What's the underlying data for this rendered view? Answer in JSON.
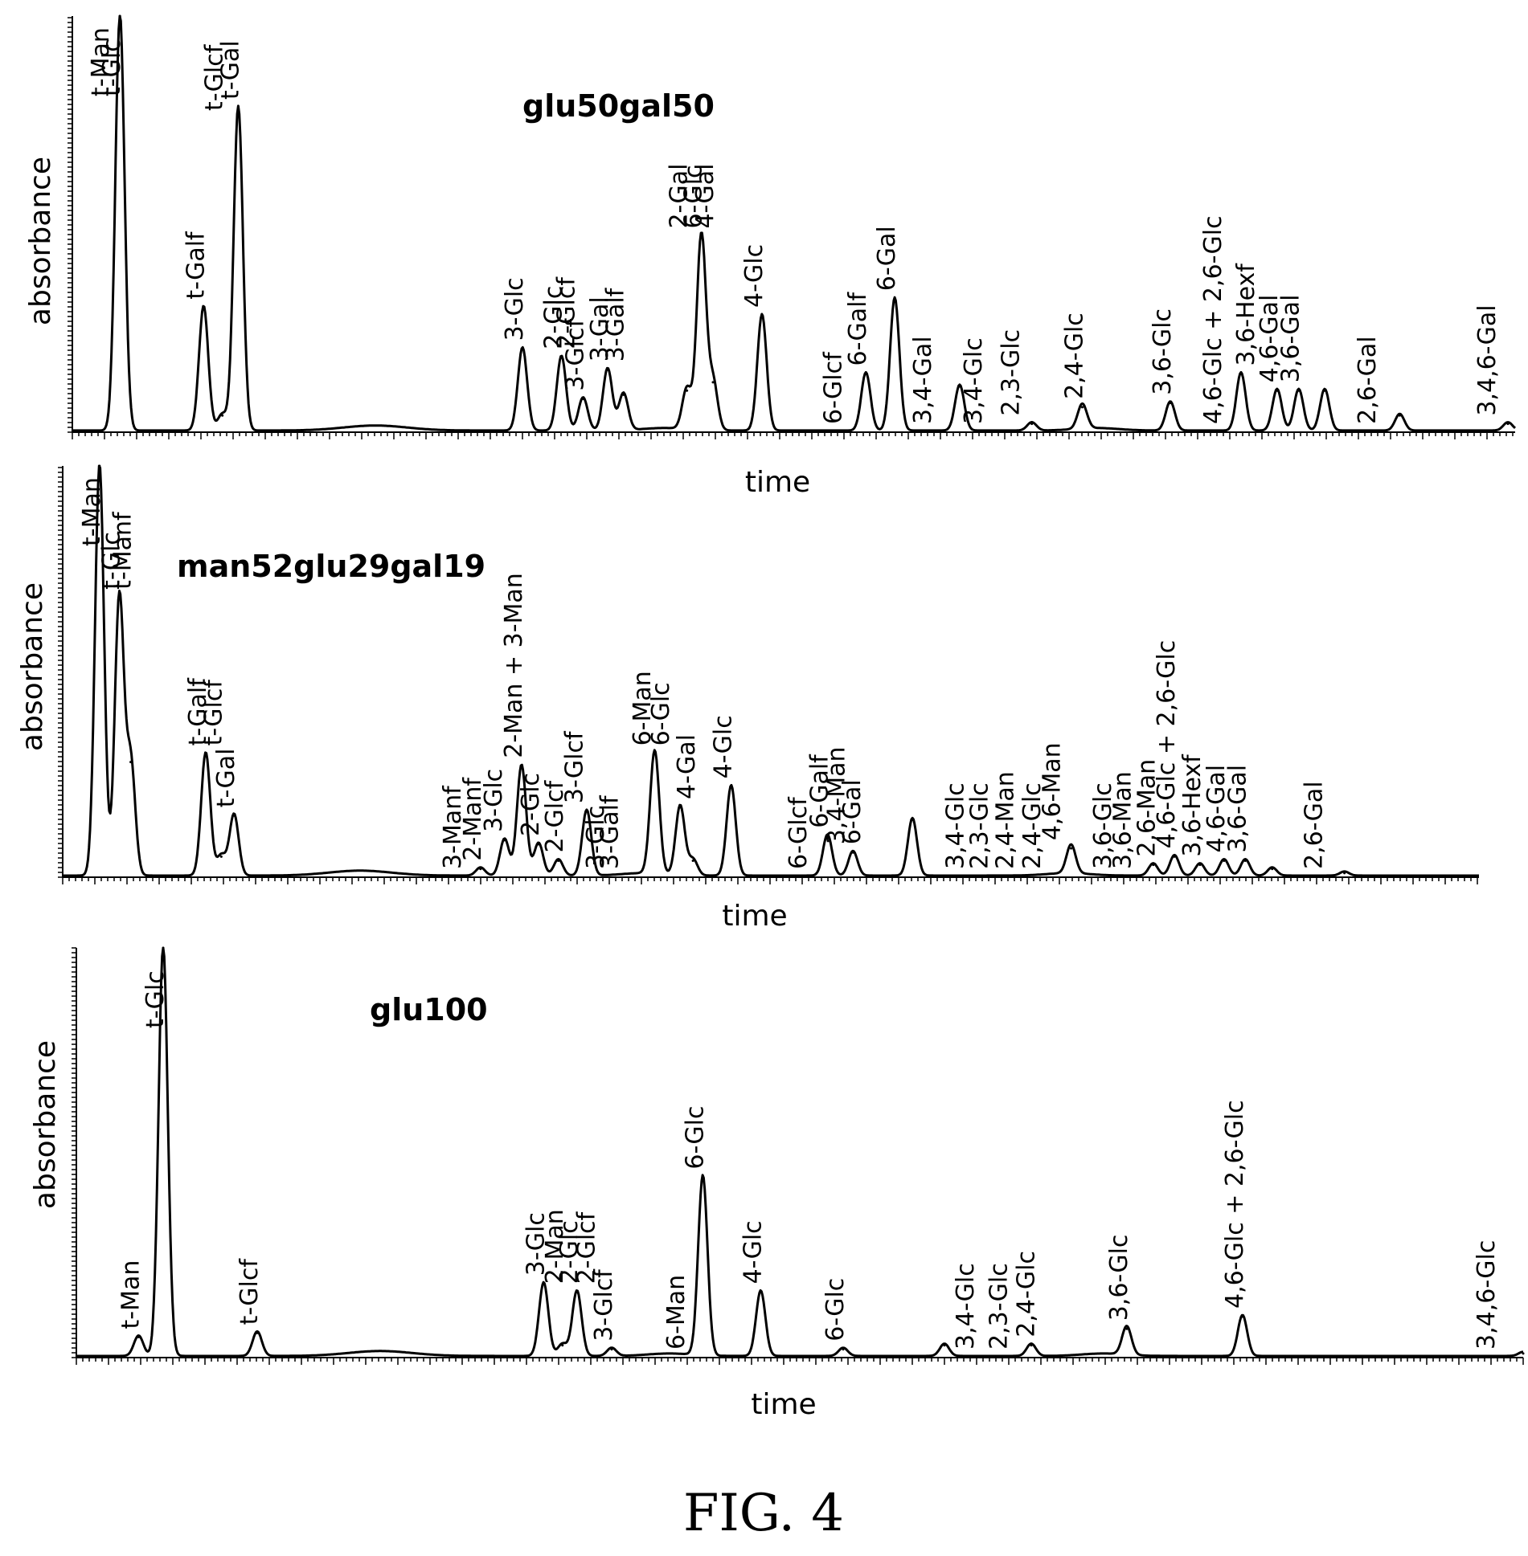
{
  "figure_caption": "FIG. 4",
  "chart_data": [
    {
      "type": "line",
      "title": "glu50gal50",
      "xlabel": "time",
      "ylabel": "absorbance",
      "grid": false,
      "xlim": [
        0,
        100
      ],
      "ylim": [
        0,
        100
      ],
      "peaks": [
        {
          "x": 3.3,
          "y": 100
        },
        {
          "x": 9.1,
          "y": 30
        },
        {
          "x": 10.4,
          "y": 4
        },
        {
          "x": 11.5,
          "y": 78
        },
        {
          "x": 31.2,
          "y": 20
        },
        {
          "x": 33.9,
          "y": 18
        },
        {
          "x": 35.4,
          "y": 8
        },
        {
          "x": 37.1,
          "y": 15
        },
        {
          "x": 38.2,
          "y": 9
        },
        {
          "x": 42.6,
          "y": 10
        },
        {
          "x": 43.6,
          "y": 47
        },
        {
          "x": 44.4,
          "y": 12
        },
        {
          "x": 47.8,
          "y": 28
        },
        {
          "x": 55.0,
          "y": 14
        },
        {
          "x": 57.0,
          "y": 32
        },
        {
          "x": 61.5,
          "y": 11
        },
        {
          "x": 66.5,
          "y": 2
        },
        {
          "x": 70.0,
          "y": 6
        },
        {
          "x": 76.1,
          "y": 7
        },
        {
          "x": 81.0,
          "y": 14
        },
        {
          "x": 83.5,
          "y": 10
        },
        {
          "x": 85.0,
          "y": 10
        },
        {
          "x": 86.8,
          "y": 10
        },
        {
          "x": 92.0,
          "y": 4
        },
        {
          "x": 99.5,
          "y": 2
        }
      ],
      "annotations": [
        {
          "text": "t-Man",
          "x": 2.5
        },
        {
          "text": "t-Glc",
          "x": 3.3
        },
        {
          "text": "t-Galf",
          "x": 9.1
        },
        {
          "text": "t-Glcf",
          "x": 10.4
        },
        {
          "text": "t-Gal",
          "x": 11.5
        },
        {
          "text": "3-Glc",
          "x": 31.2
        },
        {
          "text": "2-Glc",
          "x": 33.9
        },
        {
          "text": "2-Glcf",
          "x": 34.8
        },
        {
          "text": "3-Glcf",
          "x": 35.4
        },
        {
          "text": "3-Gal",
          "x": 37.1
        },
        {
          "text": "3-Galf",
          "x": 38.2
        },
        {
          "text": "2-Gal",
          "x": 42.6
        },
        {
          "text": "6-Glc",
          "x": 43.6
        },
        {
          "text": "4-Gal",
          "x": 44.4
        },
        {
          "text": "4-Glc",
          "x": 47.8
        },
        {
          "text": "6-Glcf",
          "x": 53.3
        },
        {
          "text": "6-Galf",
          "x": 55.0
        },
        {
          "text": "6-Gal",
          "x": 57.0
        },
        {
          "text": "3,4-Gal",
          "x": 59.5
        },
        {
          "text": "3,4-Glc",
          "x": 63.0
        },
        {
          "text": "2,3-Glc",
          "x": 65.6
        },
        {
          "text": "2,4-Glc",
          "x": 70.0
        },
        {
          "text": "3,6-Glc",
          "x": 76.1
        },
        {
          "text": "4,6-Glc + 2,6-Glc",
          "x": 79.6
        },
        {
          "text": "3,6-Hexf",
          "x": 81.9
        },
        {
          "text": "4,6-Gal",
          "x": 83.5
        },
        {
          "text": "3,6-Gal",
          "x": 85.0
        },
        {
          "text": "2,6-Gal",
          "x": 90.3
        },
        {
          "text": "3,4,6-Gal",
          "x": 98.6
        }
      ]
    },
    {
      "type": "line",
      "title": "man52glu29gal19",
      "xlabel": "time",
      "ylabel": "absorbance",
      "grid": false,
      "xlim": [
        0,
        100
      ],
      "ylim": [
        0,
        100
      ],
      "peaks": [
        {
          "x": 2.6,
          "y": 100
        },
        {
          "x": 4.0,
          "y": 68
        },
        {
          "x": 4.8,
          "y": 28
        },
        {
          "x": 10.1,
          "y": 30
        },
        {
          "x": 11.2,
          "y": 5
        },
        {
          "x": 12.1,
          "y": 15
        },
        {
          "x": 29.5,
          "y": 2
        },
        {
          "x": 31.2,
          "y": 9
        },
        {
          "x": 32.4,
          "y": 27
        },
        {
          "x": 33.6,
          "y": 8
        },
        {
          "x": 35.0,
          "y": 4
        },
        {
          "x": 37.0,
          "y": 16
        },
        {
          "x": 41.8,
          "y": 30
        },
        {
          "x": 43.6,
          "y": 17
        },
        {
          "x": 44.5,
          "y": 4
        },
        {
          "x": 47.2,
          "y": 22
        },
        {
          "x": 54.0,
          "y": 10
        },
        {
          "x": 55.8,
          "y": 6
        },
        {
          "x": 60.0,
          "y": 14
        },
        {
          "x": 71.2,
          "y": 7
        },
        {
          "x": 77.0,
          "y": 3
        },
        {
          "x": 78.5,
          "y": 5
        },
        {
          "x": 80.3,
          "y": 3
        },
        {
          "x": 82.0,
          "y": 4
        },
        {
          "x": 83.5,
          "y": 4
        },
        {
          "x": 85.4,
          "y": 2
        },
        {
          "x": 90.5,
          "y": 1
        }
      ],
      "annotations": [
        {
          "text": "t-Man",
          "x": 2.6
        },
        {
          "text": "t-Glc",
          "x": 4.0
        },
        {
          "text": "t-Manf",
          "x": 4.8
        },
        {
          "text": "t-Galf",
          "x": 10.1
        },
        {
          "text": "t-Glcf",
          "x": 11.2
        },
        {
          "text": "t-Gal",
          "x": 12.1
        },
        {
          "text": "3-Manf",
          "x": 28.1
        },
        {
          "text": "2-Manf",
          "x": 29.5
        },
        {
          "text": "3-Glc",
          "x": 31.0
        },
        {
          "text": "2-Man + 3-Man",
          "x": 32.4
        },
        {
          "text": "2-Glc",
          "x": 33.6
        },
        {
          "text": "2-Glcf",
          "x": 35.3
        },
        {
          "text": "3-Glcf",
          "x": 36.7
        },
        {
          "text": "3-Glc",
          "x": 38.2
        },
        {
          "text": "3-Galf",
          "x": 39.2
        },
        {
          "text": "6-Man",
          "x": 41.5
        },
        {
          "text": "6-Glc",
          "x": 42.8
        },
        {
          "text": "4-Gal",
          "x": 44.6
        },
        {
          "text": "4-Glc",
          "x": 47.2
        },
        {
          "text": "6-Glcf",
          "x": 52.5
        },
        {
          "text": "6-Galf",
          "x": 54.0
        },
        {
          "text": "3,4-Man",
          "x": 55.2
        },
        {
          "text": "6-Gal",
          "x": 56.3
        },
        {
          "text": "3,4-Glc",
          "x": 63.6
        },
        {
          "text": "2,3-Glc",
          "x": 65.3
        },
        {
          "text": "2,4-Man",
          "x": 67.1
        },
        {
          "text": "2,4-Glc",
          "x": 69.0
        },
        {
          "text": "4,6-Man",
          "x": 70.4
        },
        {
          "text": "3,6-Glc",
          "x": 74.0
        },
        {
          "text": "3,6-Man",
          "x": 75.4
        },
        {
          "text": "2,6-Man",
          "x": 77.1
        },
        {
          "text": "4,6-Glc + 2,6-Glc",
          "x": 78.5
        },
        {
          "text": "3,6-Hexf",
          "x": 80.3
        },
        {
          "text": "4,6-Gal",
          "x": 82.0
        },
        {
          "text": "3,6-Gal",
          "x": 83.5
        },
        {
          "text": "2,6-Gal",
          "x": 88.9
        }
      ]
    },
    {
      "type": "line",
      "title": "glu100",
      "xlabel": "time",
      "ylabel": "absorbance",
      "grid": false,
      "xlim": [
        0,
        100
      ],
      "ylim": [
        0,
        100
      ],
      "peaks": [
        {
          "x": 4.3,
          "y": 5
        },
        {
          "x": 6.0,
          "y": 100
        },
        {
          "x": 12.5,
          "y": 6
        },
        {
          "x": 32.3,
          "y": 18
        },
        {
          "x": 33.6,
          "y": 3
        },
        {
          "x": 34.6,
          "y": 16
        },
        {
          "x": 37.0,
          "y": 2
        },
        {
          "x": 43.3,
          "y": 44
        },
        {
          "x": 47.3,
          "y": 16
        },
        {
          "x": 53.0,
          "y": 2
        },
        {
          "x": 60.0,
          "y": 3
        },
        {
          "x": 66.0,
          "y": 3
        },
        {
          "x": 72.6,
          "y": 7
        },
        {
          "x": 80.6,
          "y": 10
        },
        {
          "x": 100.0,
          "y": 1
        }
      ],
      "annotations": [
        {
          "text": "t-Man",
          "x": 4.3
        },
        {
          "text": "t-Glc",
          "x": 6.0
        },
        {
          "text": "t-Glcf",
          "x": 12.5
        },
        {
          "text": "3-Glc",
          "x": 32.3
        },
        {
          "text": "2-Man",
          "x": 33.6
        },
        {
          "text": "2-Glc",
          "x": 34.6
        },
        {
          "text": "2-Glcf",
          "x": 35.8
        },
        {
          "text": "3-Glcf",
          "x": 37.0
        },
        {
          "text": "6-Man",
          "x": 42.0
        },
        {
          "text": "6-Glc",
          "x": 43.3
        },
        {
          "text": "4-Glc",
          "x": 47.3
        },
        {
          "text": "6-Glc",
          "x": 53.0
        },
        {
          "text": "3,4-Glc",
          "x": 62.0
        },
        {
          "text": "2,3-Glc",
          "x": 64.3
        },
        {
          "text": "2,4-Glc",
          "x": 66.2
        },
        {
          "text": "3,6-Glc",
          "x": 72.6
        },
        {
          "text": "4,6-Glc + 2,6-Glc",
          "x": 80.6
        },
        {
          "text": "3,4,6-Glc",
          "x": 98.0
        }
      ]
    }
  ]
}
